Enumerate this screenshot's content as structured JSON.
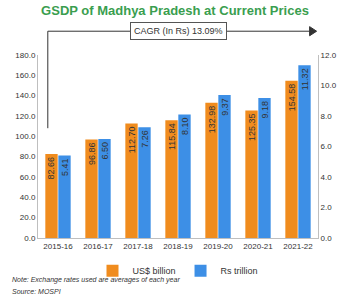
{
  "chart_data": {
    "type": "bar",
    "title": "GSDP of Madhya Pradesh at Current Prices",
    "categories": [
      "2015-16",
      "2016-17",
      "2017-18",
      "2018-19",
      "2019-20",
      "2020-21",
      "2021-22"
    ],
    "series": [
      {
        "name": "US$ billion",
        "color": "#f08c1e",
        "values": [
          82.66,
          96.86,
          112.7,
          115.84,
          132.98,
          125.35,
          154.58
        ],
        "value_labels": [
          "82.66",
          "96.86",
          "112.70",
          "115.84",
          "132.98",
          "125.35",
          "154.58"
        ]
      },
      {
        "name": "Rs trillion",
        "color": "#3d8fe6",
        "axis": "y2",
        "values": [
          5.41,
          6.5,
          7.26,
          8.1,
          9.37,
          9.18,
          11.32
        ],
        "value_labels": [
          "5.41",
          "6.50",
          "7.26",
          "8.10",
          "9.37",
          "9.18",
          "11.32"
        ]
      }
    ],
    "ylim": [
      0,
      180
    ],
    "yticks": [
      {
        "value": 0,
        "label": "0.0"
      },
      {
        "value": 20,
        "label": "20.0"
      },
      {
        "value": 40,
        "label": "40.0"
      },
      {
        "value": 60,
        "label": "60.0"
      },
      {
        "value": 80,
        "label": "80.0"
      },
      {
        "value": 100,
        "label": "100.0"
      },
      {
        "value": 120,
        "label": "120.0"
      },
      {
        "value": 140,
        "label": "140.0"
      },
      {
        "value": 160,
        "label": "160.0"
      },
      {
        "value": 180,
        "label": "180.0"
      }
    ],
    "y2lim": [
      0,
      12
    ],
    "y2ticks": [
      {
        "value": 0,
        "label": "0.0"
      },
      {
        "value": 2,
        "label": "2.0"
      },
      {
        "value": 4,
        "label": "4.0"
      },
      {
        "value": 6,
        "label": "6.0"
      },
      {
        "value": 8,
        "label": "8.0"
      },
      {
        "value": 10,
        "label": "10.0"
      },
      {
        "value": 12,
        "label": "12.0"
      }
    ],
    "annotations": [
      "CAGR (In Rs) 13.09%",
      "Note: Exchange rates used are averages of each year",
      "Source: MOSPI"
    ],
    "data_labels": true,
    "legend": "bottom",
    "grid": false
  }
}
